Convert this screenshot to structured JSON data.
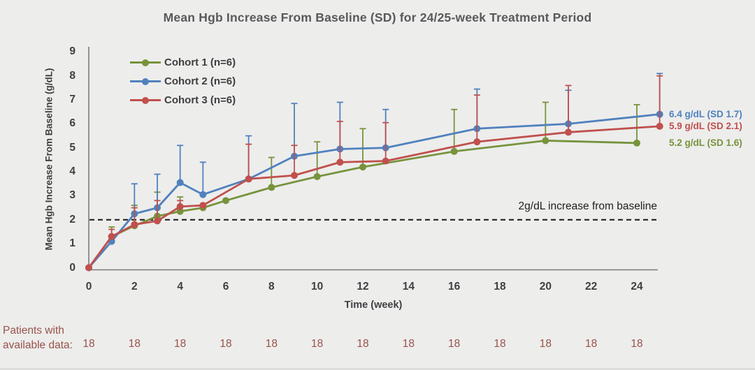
{
  "title": "Mean Hgb Increase From Baseline (SD) for 24/25-week Treatment Period",
  "colors": {
    "background": "#ededec",
    "title_text": "#58595b",
    "axis_line": "#7b7b7b",
    "tick_text": "#3f4042",
    "reference_line": "#222222",
    "maroon_text": "#98534b",
    "cohort1_green": "#77933C",
    "cohort2_blue": "#4F81BD",
    "cohort3_red": "#C0504D"
  },
  "chart_data": {
    "type": "line",
    "title": "Mean Hgb Increase From Baseline (SD) for 24/25-week Treatment Period",
    "xlabel": "Time (week)",
    "ylabel": "Mean Hgb Increase From Baseline (g/dL)",
    "xlim": [
      0,
      25
    ],
    "ylim": [
      0,
      9
    ],
    "xticks": [
      0,
      2,
      4,
      6,
      8,
      10,
      12,
      14,
      16,
      18,
      20,
      22,
      24
    ],
    "yticks": [
      0,
      1,
      2,
      3,
      4,
      5,
      6,
      7,
      8,
      9
    ],
    "grid": false,
    "legend_position": "top-left-inside",
    "error_bars": "upper, mean + 1 SD",
    "reference_line": {
      "y": 2,
      "style": "dashed",
      "label": "2g/dL increase from baseline"
    },
    "series": [
      {
        "name": "Cohort 1 (n=6)",
        "color": "#77933C",
        "x": [
          0,
          1,
          2,
          3,
          4,
          5,
          6,
          8,
          10,
          12,
          16,
          20,
          24
        ],
        "y": [
          0,
          1.3,
          1.75,
          2.15,
          2.35,
          2.5,
          2.8,
          3.35,
          3.8,
          4.2,
          4.85,
          5.3,
          5.2
        ],
        "err_top": [
          null,
          1.7,
          2.6,
          3.15,
          2.95,
          null,
          null,
          4.6,
          5.25,
          5.8,
          6.6,
          6.9,
          6.8
        ],
        "end_label": "5.2 g/dL (SD 1.6)",
        "final_value": 5.2,
        "final_sd": 1.6
      },
      {
        "name": "Cohort 2 (n=6)",
        "color": "#4F81BD",
        "x": [
          0,
          1,
          2,
          3,
          4,
          5,
          7,
          9,
          11,
          13,
          17,
          21,
          25
        ],
        "y": [
          0,
          1.1,
          2.25,
          2.5,
          3.55,
          3.05,
          3.7,
          4.65,
          4.95,
          5.0,
          5.8,
          6.0,
          6.4
        ],
        "err_top": [
          null,
          null,
          3.5,
          3.9,
          5.1,
          4.4,
          5.5,
          6.85,
          6.9,
          6.6,
          7.45,
          7.4,
          8.1
        ],
        "end_label": "6.4 g/dL (SD 1.7)",
        "final_value": 6.4,
        "final_sd": 1.7
      },
      {
        "name": "Cohort 3 (n=6)",
        "color": "#C0504D",
        "x": [
          0,
          1,
          2,
          3,
          4,
          5,
          7,
          9,
          11,
          13,
          17,
          21,
          25
        ],
        "y": [
          0,
          1.3,
          1.8,
          1.95,
          2.55,
          2.6,
          3.7,
          3.85,
          4.4,
          4.45,
          5.25,
          5.65,
          5.9
        ],
        "err_top": [
          null,
          1.6,
          2.5,
          2.8,
          2.8,
          null,
          5.15,
          5.1,
          6.1,
          6.05,
          7.2,
          7.6,
          8.0
        ],
        "end_label": "5.9 g/dL (SD 2.1)",
        "final_value": 5.9,
        "final_sd": 2.1
      }
    ],
    "patients_row": {
      "label_lines": [
        "Patients with",
        "available data:"
      ],
      "weeks": [
        0,
        2,
        4,
        6,
        8,
        10,
        12,
        14,
        16,
        18,
        20,
        22,
        24
      ],
      "counts": [
        18,
        18,
        18,
        18,
        18,
        18,
        18,
        18,
        18,
        18,
        18,
        18,
        18
      ]
    }
  }
}
